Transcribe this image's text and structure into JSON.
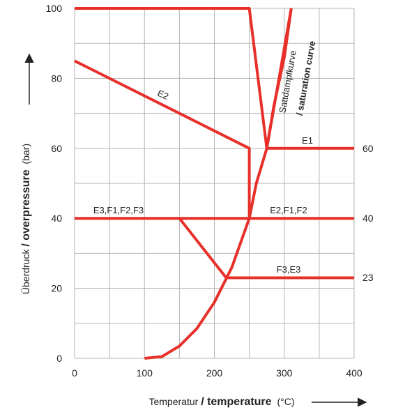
{
  "chart_data": {
    "type": "line",
    "xlabel": "Temperatur",
    "xlabel_en": "/ temperature",
    "xlabel_unit": "(°C)",
    "ylabel": "Überdruck",
    "ylabel_en": "/ overpressure",
    "ylabel_unit": "(bar)",
    "xlim": [
      0,
      400
    ],
    "ylim": [
      0,
      100
    ],
    "xticks": [
      "0",
      "100",
      "200",
      "300",
      "400"
    ],
    "yticks": [
      "0",
      "20",
      "40",
      "60",
      "80",
      "100"
    ],
    "grid": true,
    "color": "#e8302a",
    "series": [
      {
        "name": "Sattdampfkurve / saturation curve",
        "x": [
          100,
          125,
          150,
          175,
          200,
          225,
          250,
          260,
          275,
          285,
          300,
          310
        ],
        "y": [
          0,
          0.5,
          3.5,
          8.5,
          16,
          26,
          40,
          50,
          60,
          72,
          86,
          100
        ]
      },
      {
        "name": "",
        "x": [
          0,
          250,
          250,
          250
        ],
        "y": [
          100,
          100,
          100,
          100
        ]
      },
      {
        "name": "",
        "x": [
          0,
          250,
          275,
          310
        ],
        "y": [
          100,
          100,
          60,
          100
        ]
      },
      {
        "name": "E2",
        "x": [
          0,
          250,
          250
        ],
        "y": [
          85,
          60,
          40
        ]
      },
      {
        "name": "E1",
        "x": [
          275,
          400
        ],
        "y": [
          60,
          60
        ]
      },
      {
        "name": "E3,F1,F2,F3",
        "x": [
          0,
          250
        ],
        "y": [
          40,
          40
        ]
      },
      {
        "name": "E2,F1,F2",
        "x": [
          250,
          400
        ],
        "y": [
          40,
          40
        ]
      },
      {
        "name": "",
        "x": [
          150,
          217
        ],
        "y": [
          40,
          23
        ]
      },
      {
        "name": "F3,E3",
        "x": [
          217,
          400
        ],
        "y": [
          23,
          23
        ]
      }
    ],
    "annotations": {
      "saturation_de": "Sattdampfkurve",
      "saturation_en": "/ saturation curve",
      "e2": "E2",
      "e1": "E1",
      "left40": "E3,F1,F2,F3",
      "right40": "E2,F1,F2",
      "f3e3": "F3,E3",
      "r60": "60",
      "r40": "40",
      "r23": "23"
    }
  }
}
